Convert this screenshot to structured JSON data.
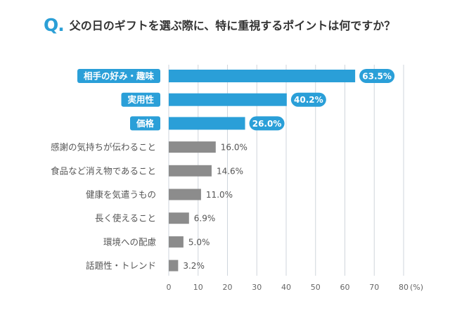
{
  "question": {
    "mark": "Q.",
    "text": "父の日のギフトを選ぶ際に、特に重視するポイントは何ですか？"
  },
  "colors": {
    "highlight": "#2a9fd8",
    "normal": "#8c8c8c",
    "grid": "#cfd6dc",
    "highlight_label_text": "#ffffff",
    "normal_label_text": "#555555"
  },
  "chart_data": {
    "type": "bar",
    "orientation": "horizontal",
    "categories": [
      "相手の好み・趣味",
      "実用性",
      "価格",
      "感謝の気持ちが伝わること",
      "食品など消え物であること",
      "健康を気遣うもの",
      "長く使えること",
      "環境への配慮",
      "話題性・トレンド"
    ],
    "values": [
      63.5,
      40.2,
      26.0,
      16.0,
      14.6,
      11.0,
      6.9,
      5.0,
      3.2
    ],
    "value_labels": [
      "63.5%",
      "40.2%",
      "26.0%",
      "16.0%",
      "14.6%",
      "11.0%",
      "6.9%",
      "5.0%",
      "3.2%"
    ],
    "highlighted": [
      true,
      true,
      true,
      false,
      false,
      false,
      false,
      false,
      false
    ],
    "xlim": [
      0,
      80
    ],
    "xticks": [
      "0",
      "10",
      "20",
      "30",
      "40",
      "50",
      "60",
      "70",
      "80"
    ],
    "x_unit": "(%)",
    "grid": true
  }
}
